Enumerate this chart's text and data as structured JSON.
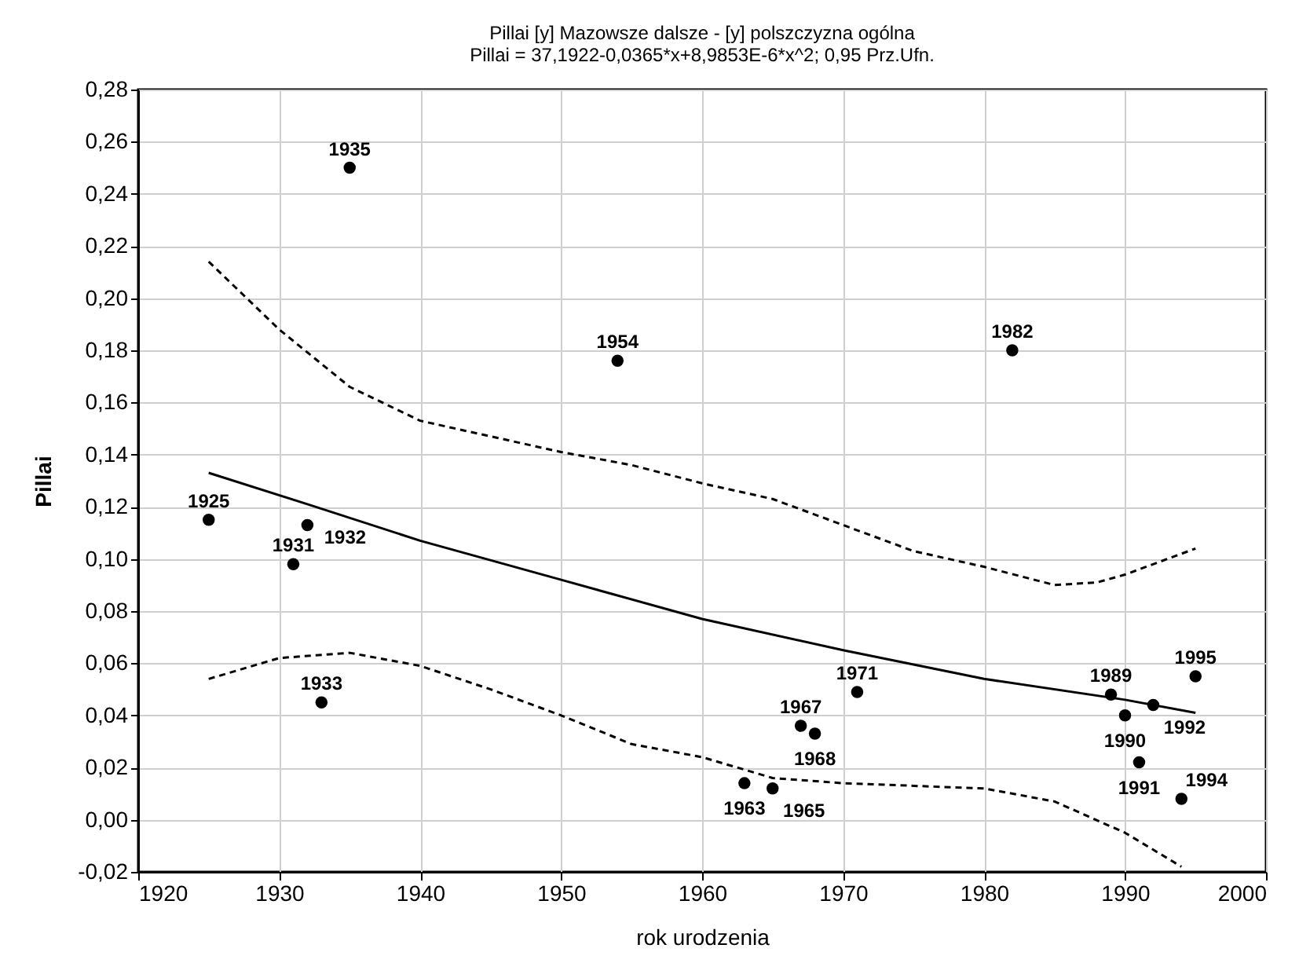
{
  "chart_data": {
    "type": "scatter",
    "title": "Pillai [y] Mazowsze dalsze - [y] polszczyzna ogólna",
    "subtitle": "Pillai = 37,1922-0,0365*x+8,9853E-6*x^2; 0,95 Prz.Ufn.",
    "xlabel": "rok urodzenia",
    "ylabel": "Pillai",
    "xlim": [
      1920,
      2000
    ],
    "xticks": [
      1920,
      1930,
      1940,
      1950,
      1960,
      1970,
      1980,
      1990,
      2000
    ],
    "ylim": [
      -0.02,
      0.28
    ],
    "yticks": [
      {
        "value": -0.02,
        "label": "-0,02"
      },
      {
        "value": 0,
        "label": "0,00"
      },
      {
        "value": 0.02,
        "label": "0,02"
      },
      {
        "value": 0.04,
        "label": "0,04"
      },
      {
        "value": 0.06,
        "label": "0,06"
      },
      {
        "value": 0.08,
        "label": "0,08"
      },
      {
        "value": 0.1,
        "label": "0,10"
      },
      {
        "value": 0.12,
        "label": "0,12"
      },
      {
        "value": 0.14,
        "label": "0,14"
      },
      {
        "value": 0.16,
        "label": "0,16"
      },
      {
        "value": 0.18,
        "label": "0,18"
      },
      {
        "value": 0.2,
        "label": "0,20"
      },
      {
        "value": 0.22,
        "label": "0,22"
      },
      {
        "value": 0.24,
        "label": "0,24"
      },
      {
        "value": 0.26,
        "label": "0,26"
      },
      {
        "value": 0.28,
        "label": "0,28"
      }
    ],
    "grid": true,
    "series": [
      {
        "type": "scatter",
        "marker": "circle",
        "color": "#000000",
        "x": [
          1925,
          1931,
          1932,
          1933,
          1935,
          1954,
          1963,
          1965,
          1967,
          1968,
          1971,
          1982,
          1989,
          1990,
          1991,
          1992,
          1994,
          1995
        ],
        "values": [
          0.115,
          0.098,
          0.113,
          0.045,
          0.25,
          0.176,
          0.014,
          0.012,
          0.036,
          0.033,
          0.049,
          0.18,
          0.048,
          0.04,
          0.022,
          0.044,
          0.008,
          0.055
        ]
      },
      {
        "type": "line",
        "line_style": "solid",
        "color": "#000000",
        "x": [
          1925,
          1932,
          1940,
          1950,
          1960,
          1970,
          1980,
          1990,
          1995
        ],
        "values": [
          0.133,
          0.121,
          0.107,
          0.092,
          0.077,
          0.065,
          0.054,
          0.046,
          0.041
        ]
      },
      {
        "type": "line",
        "line_style": "dashed",
        "color": "#000000",
        "x": [
          1925,
          1930,
          1935,
          1940,
          1945,
          1950,
          1955,
          1960,
          1965,
          1970,
          1975,
          1980,
          1985,
          1988,
          1990,
          1995
        ],
        "values": [
          0.214,
          0.188,
          0.166,
          0.153,
          0.147,
          0.141,
          0.136,
          0.129,
          0.123,
          0.113,
          0.103,
          0.097,
          0.09,
          0.091,
          0.094,
          0.104
        ]
      },
      {
        "type": "line",
        "line_style": "dashed",
        "color": "#000000",
        "x": [
          1925,
          1930,
          1935,
          1940,
          1945,
          1950,
          1955,
          1960,
          1965,
          1970,
          1975,
          1980,
          1985,
          1990,
          1994
        ],
        "values": [
          0.054,
          0.062,
          0.064,
          0.059,
          0.05,
          0.04,
          0.029,
          0.024,
          0.016,
          0.014,
          0.013,
          0.012,
          0.007,
          -0.005,
          -0.018
        ]
      }
    ],
    "annotations": [
      {
        "text": "1925",
        "x": 1925,
        "y": 0.115
      },
      {
        "text": "1931",
        "x": 1931,
        "y": 0.098
      },
      {
        "text": "1932",
        "x": 1932,
        "y": 0.113
      },
      {
        "text": "1933",
        "x": 1933,
        "y": 0.045
      },
      {
        "text": "1935",
        "x": 1935,
        "y": 0.25
      },
      {
        "text": "1954",
        "x": 1954,
        "y": 0.176
      },
      {
        "text": "1963",
        "x": 1963,
        "y": 0.014
      },
      {
        "text": "1965",
        "x": 1965,
        "y": 0.012
      },
      {
        "text": "1967",
        "x": 1967,
        "y": 0.036
      },
      {
        "text": "1968",
        "x": 1968,
        "y": 0.033
      },
      {
        "text": "1971",
        "x": 1971,
        "y": 0.049
      },
      {
        "text": "1982",
        "x": 1982,
        "y": 0.18
      },
      {
        "text": "1989",
        "x": 1989,
        "y": 0.048
      },
      {
        "text": "1990",
        "x": 1990,
        "y": 0.04
      },
      {
        "text": "1991",
        "x": 1991,
        "y": 0.022
      },
      {
        "text": "1992",
        "x": 1992,
        "y": 0.044
      },
      {
        "text": "1994",
        "x": 1994,
        "y": 0.008
      },
      {
        "text": "1995",
        "x": 1995,
        "y": 0.055
      }
    ]
  }
}
